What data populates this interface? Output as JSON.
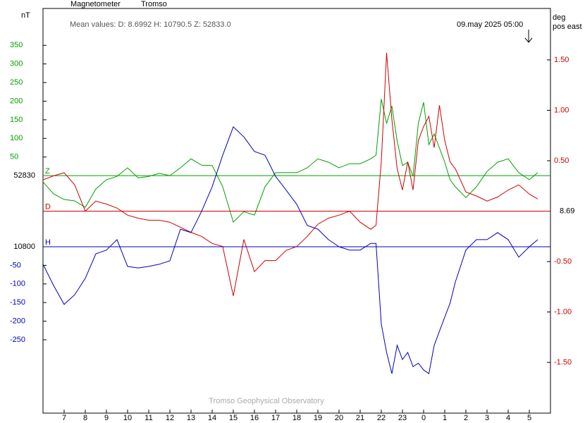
{
  "chart_data": {
    "type": "line",
    "title": "Magnetometer",
    "station": "Tromso",
    "mean_values": "Mean values:  D: 8.6992   H: 10790.5   Z: 52833.0",
    "timestamp": "09.may 2025 05:00",
    "y_label": "nT",
    "y2_label": [
      "deg",
      "pos east"
    ],
    "footer": "Tromso Geophysical Observatory",
    "xlim": [
      6,
      30
    ],
    "xticks": [
      7,
      8,
      9,
      10,
      11,
      12,
      13,
      14,
      15,
      16,
      17,
      18,
      19,
      20,
      21,
      22,
      23,
      {
        "value": 24,
        "label": "0"
      },
      {
        "value": 25,
        "label": "1"
      },
      {
        "value": 26,
        "label": "2"
      },
      {
        "value": 27,
        "label": "3"
      },
      {
        "value": 28,
        "label": "4"
      },
      {
        "value": 29,
        "label": "5"
      }
    ],
    "ylim": [
      -638,
      449
    ],
    "yticks": [
      50,
      100,
      150,
      200,
      250,
      300,
      350
    ],
    "y3lim": [
      -447,
      640
    ],
    "y3ticks": [
      -50,
      -100,
      -150,
      -200,
      -250
    ],
    "y2lim": [
      -2.003,
      2.01
    ],
    "y2ticks": [
      {
        "value": 1.5,
        "label": "1.50"
      },
      {
        "value": 1,
        "label": "1.00"
      },
      {
        "value": 0.5,
        "label": "0.50"
      },
      {
        "value": -0.5,
        "label": "-0.50"
      },
      {
        "value": -1,
        "label": "-1.00"
      },
      {
        "value": -1.5,
        "label": "-1.50"
      }
    ],
    "x": [
      6,
      6.5,
      7,
      7.5,
      8,
      8.5,
      9,
      9.5,
      10,
      10.5,
      11,
      11.5,
      12,
      12.5,
      13,
      13.5,
      14,
      14.5,
      15,
      15.5,
      16,
      16.5,
      17,
      17.5,
      18,
      18.5,
      19,
      19.5,
      20,
      20.5,
      21,
      21.5,
      21.75,
      22,
      22.25,
      22.5,
      22.75,
      23,
      23.25,
      23.5,
      23.75,
      24,
      24.25,
      24.5,
      24.75,
      25,
      25.25,
      25.5,
      26,
      26.5,
      27,
      27.5,
      28,
      28.5,
      29,
      29.4
    ],
    "series": [
      {
        "name": "Z",
        "color": "#00a000",
        "axis": "y",
        "baseline_label": "52830",
        "values": [
          -17,
          -49,
          -64,
          -68,
          -85,
          -36,
          -11,
          -2,
          21,
          -6,
          -2,
          6,
          0,
          21,
          45,
          28,
          27,
          -30,
          -125,
          -97,
          -106,
          -30,
          8,
          8,
          8,
          21,
          45,
          36,
          21,
          32,
          32,
          45,
          55,
          206,
          140,
          187,
          93,
          27,
          36,
          -2,
          140,
          197,
          83,
          112,
          74,
          36,
          -11,
          -30,
          -59,
          -30,
          11,
          36,
          45,
          8,
          -11,
          8
        ]
      },
      {
        "name": "D",
        "color": "#d00000",
        "axis": "y2",
        "baseline_label": "8.69",
        "values": [
          0.31,
          0.35,
          0.38,
          0.26,
          0.0,
          0.1,
          0.07,
          0.03,
          -0.04,
          -0.07,
          -0.09,
          -0.09,
          -0.11,
          -0.16,
          -0.21,
          -0.25,
          -0.32,
          -0.35,
          -0.84,
          -0.28,
          -0.6,
          -0.49,
          -0.49,
          -0.39,
          -0.35,
          -0.25,
          -0.13,
          -0.07,
          -0.04,
          0.0,
          -0.11,
          -0.18,
          -0.14,
          0.49,
          1.57,
          0.91,
          0.42,
          0.21,
          0.49,
          0.21,
          0.7,
          0.84,
          0.94,
          0.63,
          1.05,
          0.7,
          0.49,
          0.42,
          0.19,
          0.15,
          0.1,
          0.14,
          0.21,
          0.26,
          0.17,
          0.12
        ]
      },
      {
        "name": "H",
        "color": "#0000c0",
        "axis": "y3",
        "baseline_label": "10800",
        "values": [
          -47,
          -104,
          -155,
          -129,
          -85,
          -19,
          -9,
          19,
          -53,
          -57,
          -53,
          -47,
          -38,
          47,
          38,
          95,
          161,
          246,
          322,
          295,
          256,
          246,
          189,
          152,
          114,
          57,
          47,
          19,
          0,
          -9,
          -9,
          9,
          9,
          -208,
          -284,
          -341,
          -265,
          -303,
          -284,
          -322,
          -313,
          -331,
          -341,
          -265,
          -227,
          -189,
          -152,
          -95,
          -9,
          19,
          19,
          38,
          19,
          -28,
          0,
          19
        ]
      }
    ]
  }
}
